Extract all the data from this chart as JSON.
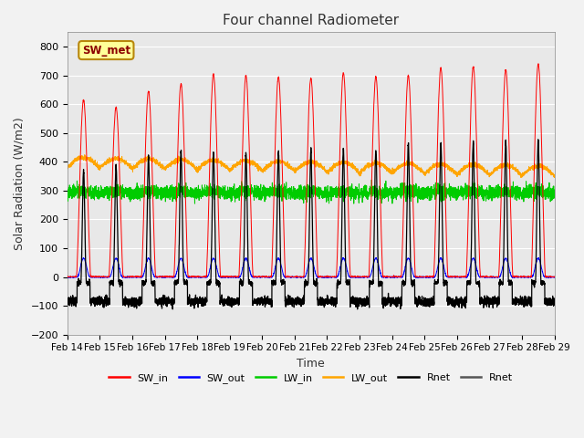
{
  "title": "Four channel Radiometer",
  "xlabel": "Time",
  "ylabel": "Solar Radiation (W/m2)",
  "ylim": [
    -200,
    850
  ],
  "yticks": [
    -200,
    -100,
    0,
    100,
    200,
    300,
    400,
    500,
    600,
    700,
    800
  ],
  "x_labels": [
    "Feb 14",
    "Feb 15",
    "Feb 16",
    "Feb 17",
    "Feb 18",
    "Feb 19",
    "Feb 20",
    "Feb 21",
    "Feb 22",
    "Feb 23",
    "Feb 24",
    "Feb 25",
    "Feb 26",
    "Feb 27",
    "Feb 28",
    "Feb 29"
  ],
  "annotation_text": "SW_met",
  "annotation_color": "#8B0000",
  "annotation_bg": "#FFFF99",
  "annotation_border": "#B8860B",
  "series_colors": {
    "SW_in": "#FF0000",
    "SW_out": "#0000FF",
    "LW_in": "#00CC00",
    "LW_out": "#FFA500",
    "Rnet_black": "#000000",
    "Rnet_dark": "#555555"
  },
  "legend_entries": [
    "SW_in",
    "SW_out",
    "LW_in",
    "LW_out",
    "Rnet",
    "Rnet"
  ],
  "legend_colors": [
    "#FF0000",
    "#0000FF",
    "#00CC00",
    "#FFA500",
    "#000000",
    "#555555"
  ],
  "background_color": "#E8E8E8",
  "n_days": 15,
  "points_per_day": 288
}
